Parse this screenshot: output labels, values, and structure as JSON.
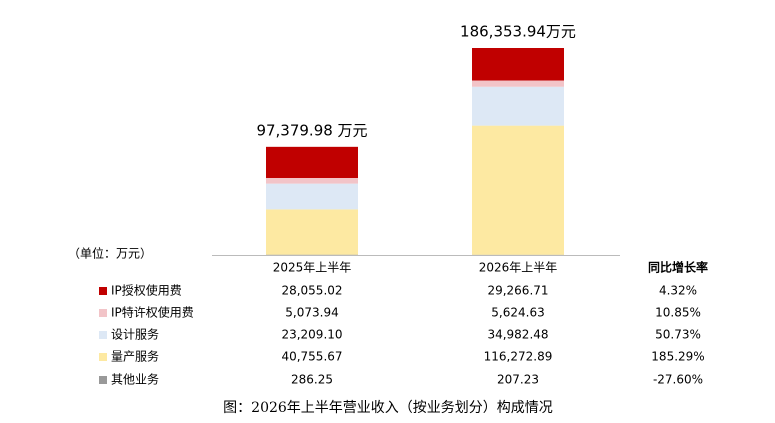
{
  "chart_data": {
    "type": "stacked-bar",
    "unit_label": "（单位：万元）",
    "caption": "图：2026年上半年营业收入（按业务划分）构成情况",
    "growth_header": "同比增长率",
    "categories": [
      "2025年上半年",
      "2026年上半年"
    ],
    "totals": [
      97379.98,
      186353.94
    ],
    "total_labels": [
      "97,379.98 万元",
      "186,353.94万元"
    ],
    "series": [
      {
        "name": "IP授权使用费",
        "color": "#c00000",
        "values": [
          28055.02,
          29266.71
        ],
        "value_labels": [
          "28,055.02",
          "29,266.71"
        ],
        "growth": 4.32,
        "growth_label": "4.32%"
      },
      {
        "name": "IP特许权使用费",
        "color": "#f2c4c8",
        "values": [
          5073.94,
          5624.63
        ],
        "value_labels": [
          "5,073.94",
          "5,624.63"
        ],
        "growth": 10.85,
        "growth_label": "10.85%"
      },
      {
        "name": "设计服务",
        "color": "#dde8f5",
        "values": [
          23209.1,
          34982.48
        ],
        "value_labels": [
          "23,209.10",
          "34,982.48"
        ],
        "growth": 50.73,
        "growth_label": "50.73%"
      },
      {
        "name": "量产服务",
        "color": "#fde9a2",
        "values": [
          40755.67,
          116272.89
        ],
        "value_labels": [
          "40,755.67",
          "116,272.89"
        ],
        "growth": 185.29,
        "growth_label": "185.29%"
      },
      {
        "name": "其他业务",
        "color": "#999999",
        "values": [
          286.25,
          207.23
        ],
        "value_labels": [
          "286.25",
          "207.23"
        ],
        "growth": -27.6,
        "growth_label": "-27.60%"
      }
    ]
  }
}
